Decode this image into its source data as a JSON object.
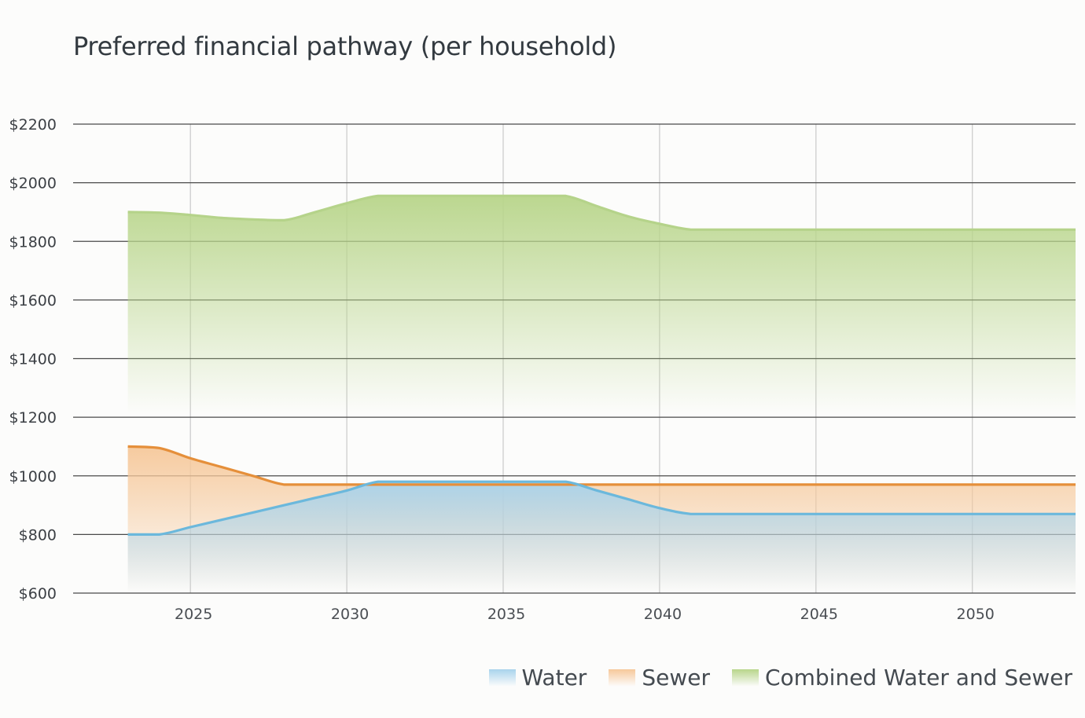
{
  "chart_data": {
    "type": "area",
    "title": "Preferred financial pathway (per household)",
    "xlabel": "",
    "ylabel": "",
    "xlim": [
      2021.25,
      2053.3
    ],
    "ylim": [
      600,
      2200
    ],
    "y_ticks": [
      600,
      800,
      1000,
      1200,
      1400,
      1600,
      1800,
      2000,
      2200
    ],
    "y_tick_labels": [
      "$600",
      "$800",
      "$1000",
      "$1200",
      "$1400",
      "$1600",
      "$1800",
      "$2000",
      "$2200"
    ],
    "x_ticks": [
      2025,
      2030,
      2035,
      2040,
      2045,
      2050
    ],
    "x_tick_labels": [
      "2025",
      "2030",
      "2035",
      "2040",
      "2045",
      "2050"
    ],
    "grid": true,
    "legend_position": "bottom-right",
    "series": [
      {
        "name": "Combined Water and Sewer",
        "color": "#b8d58a",
        "line_color": "#b5d38a",
        "x": [
          2023,
          2024,
          2025,
          2026,
          2027,
          2028,
          2029,
          2030,
          2031,
          2032,
          2033,
          2034,
          2035,
          2036,
          2037,
          2038,
          2039,
          2040,
          2041,
          2042,
          2043,
          2044,
          2045,
          2046,
          2047,
          2048,
          2049,
          2050,
          2051,
          2052,
          2053
        ],
        "values": [
          1900,
          1898,
          1890,
          1880,
          1875,
          1872,
          1900,
          1930,
          1955,
          1955,
          1955,
          1955,
          1955,
          1955,
          1955,
          1920,
          1885,
          1860,
          1840,
          1840,
          1840,
          1840,
          1840,
          1840,
          1840,
          1840,
          1840,
          1840,
          1840,
          1840,
          1840
        ]
      },
      {
        "name": "Sewer",
        "color": "#f6c89a",
        "line_color": "#e58f3a",
        "x": [
          2023,
          2024,
          2025,
          2026,
          2027,
          2028,
          2029,
          2030,
          2031,
          2032,
          2033,
          2034,
          2035,
          2036,
          2037,
          2038,
          2039,
          2040,
          2041,
          2042,
          2043,
          2044,
          2045,
          2046,
          2047,
          2048,
          2049,
          2050,
          2051,
          2052,
          2053
        ],
        "values": [
          1100,
          1095,
          1060,
          1030,
          1000,
          970,
          970,
          970,
          970,
          970,
          970,
          970,
          970,
          970,
          970,
          970,
          970,
          970,
          970,
          970,
          970,
          970,
          970,
          970,
          970,
          970,
          970,
          970,
          970,
          970,
          970
        ]
      },
      {
        "name": "Water",
        "color": "#a8d3ec",
        "line_color": "#6bb8dc",
        "x": [
          2023,
          2024,
          2025,
          2026,
          2027,
          2028,
          2029,
          2030,
          2031,
          2032,
          2033,
          2034,
          2035,
          2036,
          2037,
          2038,
          2039,
          2040,
          2041,
          2042,
          2043,
          2044,
          2045,
          2046,
          2047,
          2048,
          2049,
          2050,
          2051,
          2052,
          2053
        ],
        "values": [
          800,
          800,
          825,
          850,
          875,
          900,
          925,
          950,
          980,
          980,
          980,
          980,
          980,
          980,
          980,
          950,
          920,
          890,
          870,
          870,
          870,
          870,
          870,
          870,
          870,
          870,
          870,
          870,
          870,
          870,
          870
        ]
      }
    ]
  },
  "legend": [
    {
      "label": "Water",
      "color": "#a8d3ec"
    },
    {
      "label": "Sewer",
      "color": "#f6c89a"
    },
    {
      "label": "Combined Water and Sewer",
      "color": "#b8d58a"
    }
  ]
}
